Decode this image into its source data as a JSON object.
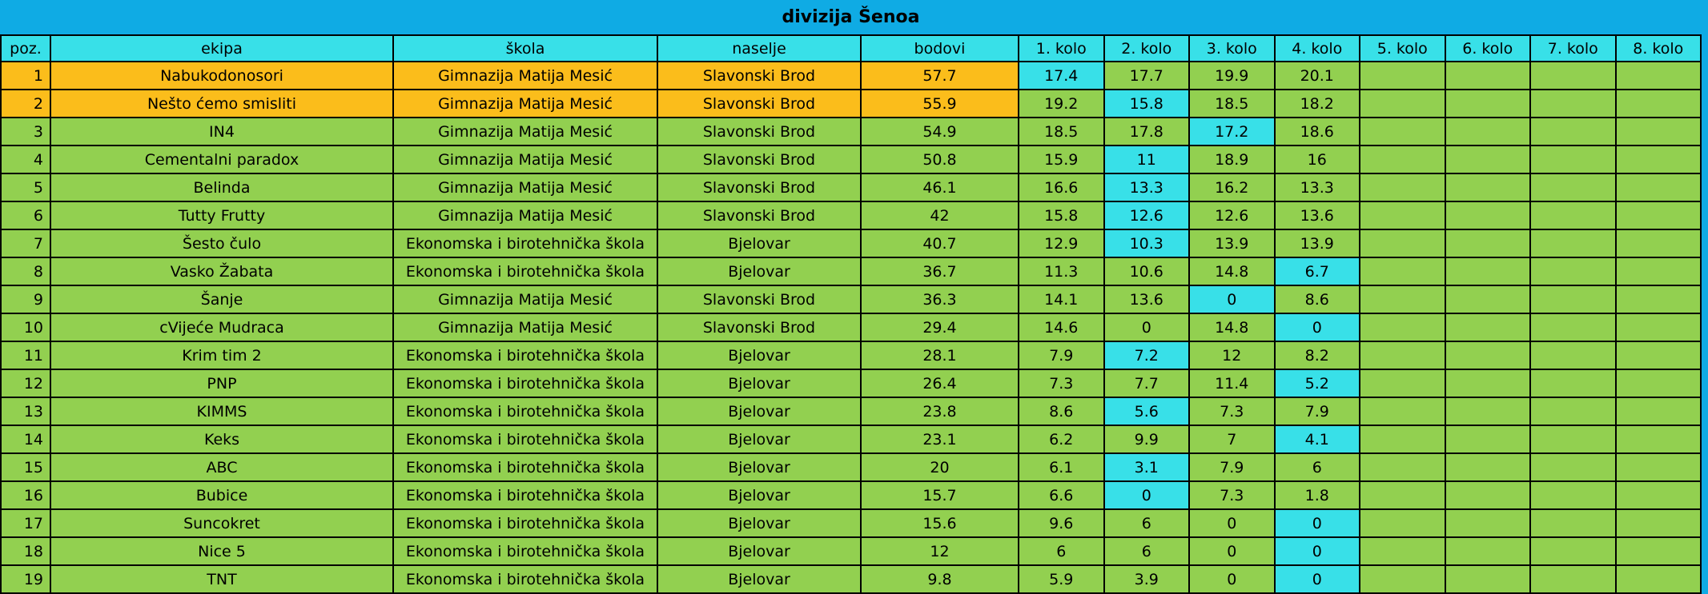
{
  "title": "divizija Šenoa",
  "colors": {
    "title_bg": "#0FABE4",
    "header_bg": "#38E0E8",
    "green_row": "#92D050",
    "orange_row": "#FBBD1B",
    "highlight": "#38E0E8",
    "border": "#000000",
    "text": "#000000"
  },
  "columns": [
    {
      "key": "poz",
      "label": "poz."
    },
    {
      "key": "ekipa",
      "label": "ekipa"
    },
    {
      "key": "skola",
      "label": "škola"
    },
    {
      "key": "naselje",
      "label": "naselje"
    },
    {
      "key": "bodovi",
      "label": "bodovi"
    },
    {
      "key": "kolo-1",
      "label": "1. kolo"
    },
    {
      "key": "kolo-2",
      "label": "2. kolo"
    },
    {
      "key": "kolo-3",
      "label": "3. kolo"
    },
    {
      "key": "kolo-4",
      "label": "4. kolo"
    },
    {
      "key": "kolo-5",
      "label": "5. kolo"
    },
    {
      "key": "kolo-6",
      "label": "6. kolo"
    },
    {
      "key": "kolo-7",
      "label": "7. kolo"
    },
    {
      "key": "kolo-8",
      "label": "8. kolo"
    }
  ],
  "rows": [
    {
      "poz": "1",
      "ekipa": "Nabukodonosori",
      "skola": "Gimnazija Matija Mesić",
      "naselje": "Slavonski Brod",
      "bodovi": "57.7",
      "kolo": [
        "17.4",
        "17.7",
        "19.9",
        "20.1",
        "",
        "",
        "",
        ""
      ],
      "highlight_kolo": 0,
      "row_style": "orange"
    },
    {
      "poz": "2",
      "ekipa": "Nešto ćemo smisliti",
      "skola": "Gimnazija Matija Mesić",
      "naselje": "Slavonski Brod",
      "bodovi": "55.9",
      "kolo": [
        "19.2",
        "15.8",
        "18.5",
        "18.2",
        "",
        "",
        "",
        ""
      ],
      "highlight_kolo": 1,
      "row_style": "orange"
    },
    {
      "poz": "3",
      "ekipa": "IN4",
      "skola": "Gimnazija Matija Mesić",
      "naselje": "Slavonski Brod",
      "bodovi": "54.9",
      "kolo": [
        "18.5",
        "17.8",
        "17.2",
        "18.6",
        "",
        "",
        "",
        ""
      ],
      "highlight_kolo": 2,
      "row_style": "green"
    },
    {
      "poz": "4",
      "ekipa": "Cementalni paradox",
      "skola": "Gimnazija Matija Mesić",
      "naselje": "Slavonski Brod",
      "bodovi": "50.8",
      "kolo": [
        "15.9",
        "11",
        "18.9",
        "16",
        "",
        "",
        "",
        ""
      ],
      "highlight_kolo": 1,
      "row_style": "green"
    },
    {
      "poz": "5",
      "ekipa": "Belinda",
      "skola": "Gimnazija Matija Mesić",
      "naselje": "Slavonski Brod",
      "bodovi": "46.1",
      "kolo": [
        "16.6",
        "13.3",
        "16.2",
        "13.3",
        "",
        "",
        "",
        ""
      ],
      "highlight_kolo": 1,
      "row_style": "green"
    },
    {
      "poz": "6",
      "ekipa": "Tutty Frutty",
      "skola": "Gimnazija Matija Mesić",
      "naselje": "Slavonski Brod",
      "bodovi": "42",
      "kolo": [
        "15.8",
        "12.6",
        "12.6",
        "13.6",
        "",
        "",
        "",
        ""
      ],
      "highlight_kolo": 1,
      "row_style": "green"
    },
    {
      "poz": "7",
      "ekipa": "Šesto čulo",
      "skola": "Ekonomska i birotehnička škola",
      "naselje": "Bjelovar",
      "bodovi": "40.7",
      "kolo": [
        "12.9",
        "10.3",
        "13.9",
        "13.9",
        "",
        "",
        "",
        ""
      ],
      "highlight_kolo": 1,
      "row_style": "green"
    },
    {
      "poz": "8",
      "ekipa": "Vasko Žabata",
      "skola": "Ekonomska i birotehnička škola",
      "naselje": "Bjelovar",
      "bodovi": "36.7",
      "kolo": [
        "11.3",
        "10.6",
        "14.8",
        "6.7",
        "",
        "",
        "",
        ""
      ],
      "highlight_kolo": 3,
      "row_style": "green"
    },
    {
      "poz": "9",
      "ekipa": "Šanje",
      "skola": "Gimnazija Matija Mesić",
      "naselje": "Slavonski Brod",
      "bodovi": "36.3",
      "kolo": [
        "14.1",
        "13.6",
        "0",
        "8.6",
        "",
        "",
        "",
        ""
      ],
      "highlight_kolo": 2,
      "row_style": "green"
    },
    {
      "poz": "10",
      "ekipa": "cVijeće Mudraca",
      "skola": "Gimnazija Matija Mesić",
      "naselje": "Slavonski Brod",
      "bodovi": "29.4",
      "kolo": [
        "14.6",
        "0",
        "14.8",
        "0",
        "",
        "",
        "",
        ""
      ],
      "highlight_kolo": 3,
      "row_style": "green"
    },
    {
      "poz": "11",
      "ekipa": "Krim tim 2",
      "skola": "Ekonomska i birotehnička škola",
      "naselje": "Bjelovar",
      "bodovi": "28.1",
      "kolo": [
        "7.9",
        "7.2",
        "12",
        "8.2",
        "",
        "",
        "",
        ""
      ],
      "highlight_kolo": 1,
      "row_style": "green"
    },
    {
      "poz": "12",
      "ekipa": "PNP",
      "skola": "Ekonomska i birotehnička škola",
      "naselje": "Bjelovar",
      "bodovi": "26.4",
      "kolo": [
        "7.3",
        "7.7",
        "11.4",
        "5.2",
        "",
        "",
        "",
        ""
      ],
      "highlight_kolo": 3,
      "row_style": "green"
    },
    {
      "poz": "13",
      "ekipa": "KIMMS",
      "skola": "Ekonomska i birotehnička škola",
      "naselje": "Bjelovar",
      "bodovi": "23.8",
      "kolo": [
        "8.6",
        "5.6",
        "7.3",
        "7.9",
        "",
        "",
        "",
        ""
      ],
      "highlight_kolo": 1,
      "row_style": "green"
    },
    {
      "poz": "14",
      "ekipa": "Keks",
      "skola": "Ekonomska i birotehnička škola",
      "naselje": "Bjelovar",
      "bodovi": "23.1",
      "kolo": [
        "6.2",
        "9.9",
        "7",
        "4.1",
        "",
        "",
        "",
        ""
      ],
      "highlight_kolo": 3,
      "row_style": "green"
    },
    {
      "poz": "15",
      "ekipa": "ABC",
      "skola": "Ekonomska i birotehnička škola",
      "naselje": "Bjelovar",
      "bodovi": "20",
      "kolo": [
        "6.1",
        "3.1",
        "7.9",
        "6",
        "",
        "",
        "",
        ""
      ],
      "highlight_kolo": 1,
      "row_style": "green"
    },
    {
      "poz": "16",
      "ekipa": "Bubice",
      "skola": "Ekonomska i birotehnička škola",
      "naselje": "Bjelovar",
      "bodovi": "15.7",
      "kolo": [
        "6.6",
        "0",
        "7.3",
        "1.8",
        "",
        "",
        "",
        ""
      ],
      "highlight_kolo": 1,
      "row_style": "green"
    },
    {
      "poz": "17",
      "ekipa": "Suncokret",
      "skola": "Ekonomska i birotehnička škola",
      "naselje": "Bjelovar",
      "bodovi": "15.6",
      "kolo": [
        "9.6",
        "6",
        "0",
        "0",
        "",
        "",
        "",
        ""
      ],
      "highlight_kolo": 3,
      "row_style": "green"
    },
    {
      "poz": "18",
      "ekipa": "Nice 5",
      "skola": "Ekonomska i birotehnička škola",
      "naselje": "Bjelovar",
      "bodovi": "12",
      "kolo": [
        "6",
        "6",
        "0",
        "0",
        "",
        "",
        "",
        ""
      ],
      "highlight_kolo": 3,
      "row_style": "green"
    },
    {
      "poz": "19",
      "ekipa": "TNT",
      "skola": "Ekonomska i birotehnička škola",
      "naselje": "Bjelovar",
      "bodovi": "9.8",
      "kolo": [
        "5.9",
        "3.9",
        "0",
        "0",
        "",
        "",
        "",
        ""
      ],
      "highlight_kolo": 3,
      "row_style": "green"
    }
  ]
}
